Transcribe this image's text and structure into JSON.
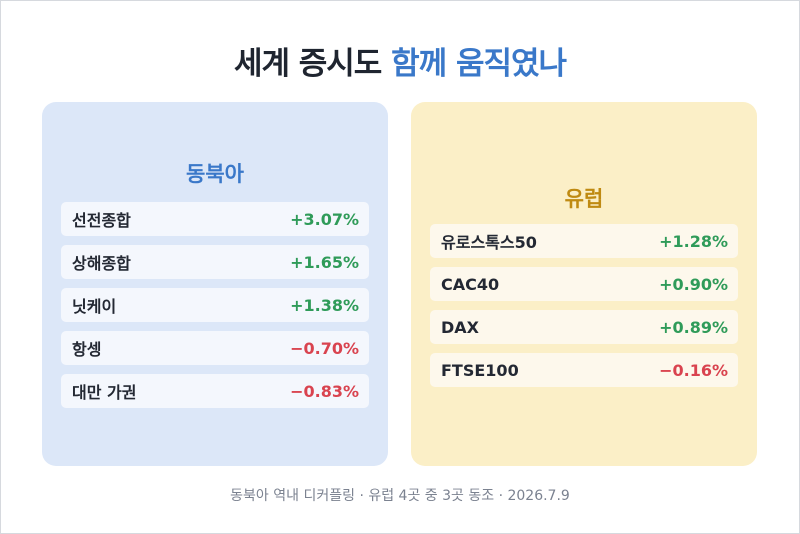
{
  "title": {
    "main": "세계 증시도",
    "accent": "함께 움직였나"
  },
  "colors": {
    "up": "#2f9b59",
    "down": "#d9434f",
    "asia_accent": "#3a78c9",
    "europe_accent": "#bf8a12"
  },
  "asia": {
    "title": "동북아",
    "rows": [
      {
        "name": "선전종합",
        "value": "+3.07%",
        "trend": "up"
      },
      {
        "name": "상해종합",
        "value": "+1.65%",
        "trend": "up"
      },
      {
        "name": "닛케이",
        "value": "+1.38%",
        "trend": "up"
      },
      {
        "name": "항셍",
        "value": "−0.70%",
        "trend": "down"
      },
      {
        "name": "대만 가권",
        "value": "−0.83%",
        "trend": "down"
      }
    ]
  },
  "europe": {
    "title": "유럽",
    "rows": [
      {
        "name": "유로스톡스50",
        "value": "+1.28%",
        "trend": "up"
      },
      {
        "name": "CAC40",
        "value": "+0.90%",
        "trend": "up"
      },
      {
        "name": "DAX",
        "value": "+0.89%",
        "trend": "up"
      },
      {
        "name": "FTSE100",
        "value": "−0.16%",
        "trend": "down"
      }
    ]
  },
  "footer": "동북아 역내 디커플링 · 유럽 4곳 중 3곳 동조 · 2026.7.9"
}
